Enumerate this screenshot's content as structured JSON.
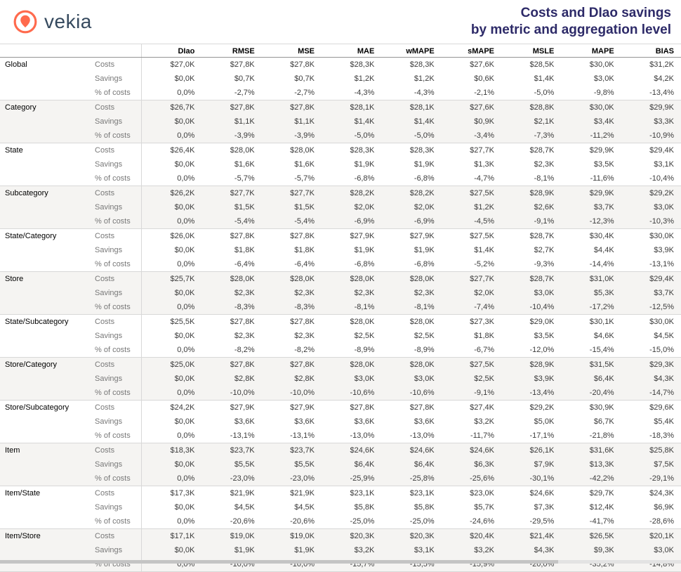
{
  "logo": {
    "text": "vekia"
  },
  "title": {
    "line1": "Costs and DIao savings",
    "line2": "by metric and aggregation level"
  },
  "colors": {
    "accent_orange": "#ff6a4d",
    "title_navy": "#2d2a68",
    "logo_slate": "#35495e",
    "shaded_row": "#f5f4f2"
  },
  "chart_data": {
    "type": "table",
    "title": "Costs and DIao savings by metric and aggregation level",
    "columns": [
      "DIao",
      "RMSE",
      "MSE",
      "MAE",
      "wMAPE",
      "sMAPE",
      "MSLE",
      "MAPE",
      "BIAS"
    ],
    "row_types": [
      "Costs",
      "Savings",
      "% of costs"
    ],
    "groups": [
      {
        "name": "Global",
        "rows": [
          [
            "$27,0K",
            "$27,8K",
            "$27,8K",
            "$28,3K",
            "$28,3K",
            "$27,6K",
            "$28,5K",
            "$30,0K",
            "$31,2K"
          ],
          [
            "$0,0K",
            "$0,7K",
            "$0,7K",
            "$1,2K",
            "$1,2K",
            "$0,6K",
            "$1,4K",
            "$3,0K",
            "$4,2K"
          ],
          [
            "0,0%",
            "-2,7%",
            "-2,7%",
            "-4,3%",
            "-4,3%",
            "-2,1%",
            "-5,0%",
            "-9,8%",
            "-13,4%"
          ]
        ]
      },
      {
        "name": "Category",
        "rows": [
          [
            "$26,7K",
            "$27,8K",
            "$27,8K",
            "$28,1K",
            "$28,1K",
            "$27,6K",
            "$28,8K",
            "$30,0K",
            "$29,9K"
          ],
          [
            "$0,0K",
            "$1,1K",
            "$1,1K",
            "$1,4K",
            "$1,4K",
            "$0,9K",
            "$2,1K",
            "$3,4K",
            "$3,3K"
          ],
          [
            "0,0%",
            "-3,9%",
            "-3,9%",
            "-5,0%",
            "-5,0%",
            "-3,4%",
            "-7,3%",
            "-11,2%",
            "-10,9%"
          ]
        ]
      },
      {
        "name": "State",
        "rows": [
          [
            "$26,4K",
            "$28,0K",
            "$28,0K",
            "$28,3K",
            "$28,3K",
            "$27,7K",
            "$28,7K",
            "$29,9K",
            "$29,4K"
          ],
          [
            "$0,0K",
            "$1,6K",
            "$1,6K",
            "$1,9K",
            "$1,9K",
            "$1,3K",
            "$2,3K",
            "$3,5K",
            "$3,1K"
          ],
          [
            "0,0%",
            "-5,7%",
            "-5,7%",
            "-6,8%",
            "-6,8%",
            "-4,7%",
            "-8,1%",
            "-11,6%",
            "-10,4%"
          ]
        ]
      },
      {
        "name": "Subcategory",
        "rows": [
          [
            "$26,2K",
            "$27,7K",
            "$27,7K",
            "$28,2K",
            "$28,2K",
            "$27,5K",
            "$28,9K",
            "$29,9K",
            "$29,2K"
          ],
          [
            "$0,0K",
            "$1,5K",
            "$1,5K",
            "$2,0K",
            "$2,0K",
            "$1,2K",
            "$2,6K",
            "$3,7K",
            "$3,0K"
          ],
          [
            "0,0%",
            "-5,4%",
            "-5,4%",
            "-6,9%",
            "-6,9%",
            "-4,5%",
            "-9,1%",
            "-12,3%",
            "-10,3%"
          ]
        ]
      },
      {
        "name": "State/Category",
        "rows": [
          [
            "$26,0K",
            "$27,8K",
            "$27,8K",
            "$27,9K",
            "$27,9K",
            "$27,5K",
            "$28,7K",
            "$30,4K",
            "$30,0K"
          ],
          [
            "$0,0K",
            "$1,8K",
            "$1,8K",
            "$1,9K",
            "$1,9K",
            "$1,4K",
            "$2,7K",
            "$4,4K",
            "$3,9K"
          ],
          [
            "0,0%",
            "-6,4%",
            "-6,4%",
            "-6,8%",
            "-6,8%",
            "-5,2%",
            "-9,3%",
            "-14,4%",
            "-13,1%"
          ]
        ]
      },
      {
        "name": "Store",
        "rows": [
          [
            "$25,7K",
            "$28,0K",
            "$28,0K",
            "$28,0K",
            "$28,0K",
            "$27,7K",
            "$28,7K",
            "$31,0K",
            "$29,4K"
          ],
          [
            "$0,0K",
            "$2,3K",
            "$2,3K",
            "$2,3K",
            "$2,3K",
            "$2,0K",
            "$3,0K",
            "$5,3K",
            "$3,7K"
          ],
          [
            "0,0%",
            "-8,3%",
            "-8,3%",
            "-8,1%",
            "-8,1%",
            "-7,4%",
            "-10,4%",
            "-17,2%",
            "-12,5%"
          ]
        ]
      },
      {
        "name": "State/Subcategory",
        "rows": [
          [
            "$25,5K",
            "$27,8K",
            "$27,8K",
            "$28,0K",
            "$28,0K",
            "$27,3K",
            "$29,0K",
            "$30,1K",
            "$30,0K"
          ],
          [
            "$0,0K",
            "$2,3K",
            "$2,3K",
            "$2,5K",
            "$2,5K",
            "$1,8K",
            "$3,5K",
            "$4,6K",
            "$4,5K"
          ],
          [
            "0,0%",
            "-8,2%",
            "-8,2%",
            "-8,9%",
            "-8,9%",
            "-6,7%",
            "-12,0%",
            "-15,4%",
            "-15,0%"
          ]
        ]
      },
      {
        "name": "Store/Category",
        "rows": [
          [
            "$25,0K",
            "$27,8K",
            "$27,8K",
            "$28,0K",
            "$28,0K",
            "$27,5K",
            "$28,9K",
            "$31,5K",
            "$29,3K"
          ],
          [
            "$0,0K",
            "$2,8K",
            "$2,8K",
            "$3,0K",
            "$3,0K",
            "$2,5K",
            "$3,9K",
            "$6,4K",
            "$4,3K"
          ],
          [
            "0,0%",
            "-10,0%",
            "-10,0%",
            "-10,6%",
            "-10,6%",
            "-9,1%",
            "-13,4%",
            "-20,4%",
            "-14,7%"
          ]
        ]
      },
      {
        "name": "Store/Subcategory",
        "rows": [
          [
            "$24,2K",
            "$27,9K",
            "$27,9K",
            "$27,8K",
            "$27,8K",
            "$27,4K",
            "$29,2K",
            "$30,9K",
            "$29,6K"
          ],
          [
            "$0,0K",
            "$3,6K",
            "$3,6K",
            "$3,6K",
            "$3,6K",
            "$3,2K",
            "$5,0K",
            "$6,7K",
            "$5,4K"
          ],
          [
            "0,0%",
            "-13,1%",
            "-13,1%",
            "-13,0%",
            "-13,0%",
            "-11,7%",
            "-17,1%",
            "-21,8%",
            "-18,3%"
          ]
        ]
      },
      {
        "name": "Item",
        "rows": [
          [
            "$18,3K",
            "$23,7K",
            "$23,7K",
            "$24,6K",
            "$24,6K",
            "$24,6K",
            "$26,1K",
            "$31,6K",
            "$25,8K"
          ],
          [
            "$0,0K",
            "$5,5K",
            "$5,5K",
            "$6,4K",
            "$6,4K",
            "$6,3K",
            "$7,9K",
            "$13,3K",
            "$7,5K"
          ],
          [
            "0,0%",
            "-23,0%",
            "-23,0%",
            "-25,9%",
            "-25,8%",
            "-25,6%",
            "-30,1%",
            "-42,2%",
            "-29,1%"
          ]
        ]
      },
      {
        "name": "Item/State",
        "rows": [
          [
            "$17,3K",
            "$21,9K",
            "$21,9K",
            "$23,1K",
            "$23,1K",
            "$23,0K",
            "$24,6K",
            "$29,7K",
            "$24,3K"
          ],
          [
            "$0,0K",
            "$4,5K",
            "$4,5K",
            "$5,8K",
            "$5,8K",
            "$5,7K",
            "$7,3K",
            "$12,4K",
            "$6,9K"
          ],
          [
            "0,0%",
            "-20,6%",
            "-20,6%",
            "-25,0%",
            "-25,0%",
            "-24,6%",
            "-29,5%",
            "-41,7%",
            "-28,6%"
          ]
        ]
      },
      {
        "name": "Item/Store",
        "rows": [
          [
            "$17,1K",
            "$19,0K",
            "$19,0K",
            "$20,3K",
            "$20,3K",
            "$20,4K",
            "$21,4K",
            "$26,5K",
            "$20,1K"
          ],
          [
            "$0,0K",
            "$1,9K",
            "$1,9K",
            "$3,2K",
            "$3,1K",
            "$3,2K",
            "$4,3K",
            "$9,3K",
            "$3,0K"
          ],
          [
            "0,0%",
            "-10,0%",
            "-10,0%",
            "-15,7%",
            "-15,5%",
            "-15,9%",
            "-20,0%",
            "-35,2%",
            "-14,8%"
          ]
        ]
      }
    ]
  }
}
